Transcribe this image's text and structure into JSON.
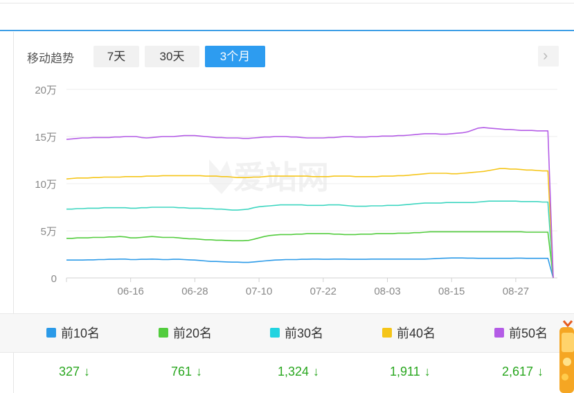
{
  "toolbar": {
    "trend_label": "移动趋势",
    "tabs": [
      {
        "label": "7天",
        "active": false
      },
      {
        "label": "30天",
        "active": false
      },
      {
        "label": "3个月",
        "active": true
      }
    ],
    "next_icon": "chevron-right-icon"
  },
  "watermark": "爱站网",
  "chart_data": {
    "type": "line",
    "title": "",
    "xlabel": "",
    "ylabel": "",
    "y_unit": "万",
    "ylim": [
      0,
      200000
    ],
    "y_ticks": [
      0,
      50000,
      100000,
      150000,
      200000
    ],
    "y_tick_labels": [
      "0",
      "5万",
      "10万",
      "15万",
      "20万"
    ],
    "x_tick_labels": [
      "06-16",
      "06-28",
      "07-10",
      "07-22",
      "08-03",
      "08-15",
      "08-27"
    ],
    "x_tick_indices": [
      12,
      24,
      36,
      48,
      60,
      72,
      84
    ],
    "grid": true,
    "series": [
      {
        "name": "前10名",
        "color": "#2b9ae8",
        "values": [
          19000,
          19000,
          19000,
          19000,
          19200,
          19200,
          19500,
          19500,
          19800,
          19800,
          20000,
          20000,
          19500,
          19500,
          19800,
          19800,
          20000,
          19800,
          19500,
          19500,
          19800,
          19800,
          19500,
          19200,
          19000,
          18500,
          18000,
          17500,
          17500,
          17200,
          17000,
          16800,
          16800,
          16500,
          16500,
          17000,
          17500,
          18000,
          18500,
          19000,
          19200,
          19500,
          19500,
          19500,
          19800,
          19800,
          20000,
          20000,
          19800,
          19800,
          20000,
          20000,
          20000,
          19800,
          19800,
          19800,
          19800,
          20000,
          20000,
          20000,
          20000,
          20000,
          20000,
          20000,
          20000,
          20000,
          20000,
          20000,
          20200,
          20500,
          20800,
          21000,
          21200,
          21200,
          21200,
          21000,
          21000,
          20800,
          20800,
          20800,
          20800,
          20800,
          20800,
          20800,
          21000,
          21000,
          20800,
          20800,
          20800,
          20800,
          20800,
          0
        ]
      },
      {
        "name": "前20名",
        "color": "#52cc3d",
        "values": [
          42000,
          42000,
          42500,
          42500,
          42500,
          43000,
          43000,
          43000,
          43500,
          43500,
          44000,
          43500,
          42500,
          42500,
          43000,
          43500,
          44000,
          43500,
          43000,
          43000,
          43000,
          42500,
          42000,
          41500,
          41500,
          41000,
          40500,
          40500,
          40000,
          40000,
          39800,
          39500,
          39500,
          39500,
          39800,
          41000,
          42500,
          44000,
          45000,
          45500,
          46000,
          46000,
          46000,
          46500,
          46500,
          47000,
          47000,
          47000,
          47000,
          47000,
          46500,
          46500,
          46000,
          46000,
          46000,
          46500,
          46500,
          46500,
          47000,
          47000,
          47000,
          47000,
          47500,
          47500,
          47500,
          48000,
          48000,
          48500,
          49000,
          49000,
          49000,
          49000,
          49000,
          49000,
          49000,
          49000,
          49000,
          49000,
          49000,
          49000,
          49000,
          49000,
          49000,
          49000,
          49000,
          49000,
          48500,
          48500,
          48500,
          48500,
          48500,
          0
        ]
      },
      {
        "name": "前30名",
        "color": "#3dd6c0",
        "values": [
          73000,
          73000,
          73500,
          73500,
          74000,
          74000,
          74000,
          74500,
          74500,
          74500,
          74500,
          74500,
          74000,
          74000,
          74500,
          74500,
          75000,
          75000,
          75000,
          75000,
          75000,
          74500,
          74500,
          74000,
          74000,
          74000,
          73500,
          73500,
          73000,
          73000,
          72500,
          72000,
          72000,
          72500,
          73000,
          74500,
          75500,
          76000,
          76500,
          77000,
          77500,
          77500,
          77500,
          77500,
          77500,
          77000,
          77000,
          77000,
          77000,
          77500,
          77500,
          77500,
          77000,
          76500,
          76000,
          76000,
          76000,
          76500,
          76500,
          76500,
          77000,
          77000,
          77000,
          77500,
          78000,
          78500,
          79000,
          79500,
          79500,
          79500,
          79500,
          80000,
          80000,
          80000,
          80000,
          80000,
          80000,
          80500,
          81000,
          81500,
          81500,
          81500,
          81500,
          81500,
          81500,
          81000,
          81000,
          81000,
          81000,
          80500,
          80500,
          0
        ]
      },
      {
        "name": "前40名",
        "color": "#f5c518",
        "values": [
          105000,
          105500,
          106000,
          106000,
          106000,
          106500,
          106500,
          107000,
          107000,
          107000,
          107000,
          107500,
          107500,
          107500,
          107500,
          108000,
          108000,
          108000,
          108500,
          108500,
          108500,
          108500,
          108500,
          108500,
          108500,
          108500,
          108000,
          108000,
          108000,
          107500,
          107500,
          107000,
          106500,
          106500,
          106500,
          107000,
          107000,
          107500,
          108000,
          108000,
          108000,
          108000,
          108000,
          108000,
          108000,
          108000,
          107500,
          107500,
          107500,
          107500,
          108000,
          108000,
          108000,
          108000,
          107500,
          107500,
          107500,
          107500,
          107500,
          108000,
          108000,
          108000,
          108500,
          108500,
          109000,
          109500,
          110000,
          110500,
          111000,
          111000,
          111000,
          111000,
          110500,
          110500,
          111000,
          111500,
          112000,
          112500,
          113000,
          114000,
          115000,
          116000,
          116000,
          115500,
          115500,
          115000,
          114500,
          114500,
          114000,
          113500,
          113500,
          0
        ]
      },
      {
        "name": "前50名",
        "color": "#b45ce6",
        "values": [
          147000,
          147500,
          148000,
          148500,
          148500,
          149000,
          149000,
          149000,
          149000,
          149500,
          149500,
          150000,
          150000,
          150000,
          149000,
          148500,
          149000,
          149500,
          150000,
          150000,
          150000,
          150500,
          151000,
          151000,
          151000,
          150500,
          150000,
          149500,
          149000,
          149000,
          148500,
          148500,
          148500,
          148000,
          148000,
          148500,
          149000,
          149500,
          149500,
          150000,
          150000,
          150000,
          149500,
          149500,
          149000,
          148500,
          148500,
          148500,
          148500,
          149000,
          149000,
          149500,
          150000,
          150000,
          149500,
          149500,
          149500,
          150000,
          150000,
          150500,
          150500,
          150500,
          151000,
          151000,
          151500,
          152000,
          152500,
          153000,
          153000,
          153000,
          152500,
          152500,
          153000,
          153500,
          154000,
          155000,
          157000,
          159000,
          159500,
          159000,
          158500,
          158000,
          157500,
          157500,
          157000,
          156500,
          156500,
          156500,
          156000,
          156000,
          156000,
          0
        ]
      }
    ]
  },
  "summary": [
    {
      "label": "前10名",
      "value": "327",
      "trend": "down"
    },
    {
      "label": "前20名",
      "value": "761",
      "trend": "down"
    },
    {
      "label": "前30名",
      "value": "1,324",
      "trend": "down"
    },
    {
      "label": "前40名",
      "value": "1,911",
      "trend": "down"
    },
    {
      "label": "前50名",
      "value": "2,617",
      "trend": "down"
    }
  ]
}
